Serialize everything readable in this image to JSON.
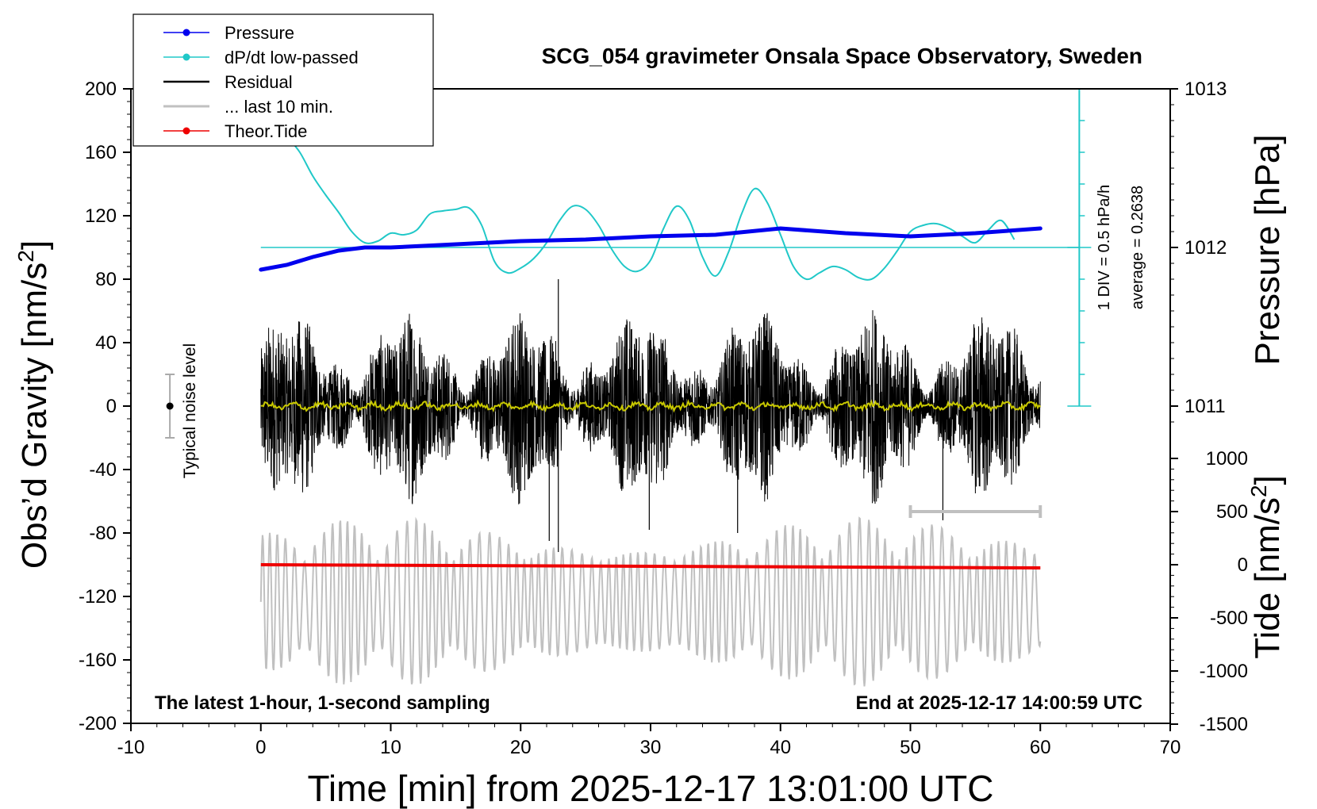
{
  "chart_data": {
    "type": "line",
    "title": "SCG_054 gravimeter Onsala Space Observatory, Sweden",
    "xlabel": "Time [min] from 2025-12-17 13:01:00 UTC",
    "ylabel_left": "Obs’d Gravity [nm/s",
    "ylabel_left_sup": "2",
    "ylabel_left_end": "]",
    "ylabel_right_pressure": "Pressure [hPa]",
    "ylabel_right_tide": "Tide [nm/s",
    "ylabel_right_tide_sup": "2",
    "ylabel_right_tide_end": "]",
    "xlim": [
      -10,
      70
    ],
    "ylim": [
      -200,
      200
    ],
    "pressure_ylim": [
      1011,
      1013
    ],
    "tide_ylim": [
      -1500,
      1000
    ],
    "x_ticks": [
      "-10",
      "0",
      "10",
      "20",
      "30",
      "40",
      "50",
      "60",
      "70"
    ],
    "y_ticks": [
      "200",
      "160",
      "120",
      "80",
      "40",
      "0",
      "-40",
      "-80",
      "-120",
      "-160",
      "-200"
    ],
    "pressure_ticks": [
      "1013",
      "1012",
      "1011"
    ],
    "tide_ticks": [
      "1000",
      "500",
      "0",
      "-500",
      "-1000",
      "-1500"
    ],
    "annotation_left": "The latest 1-hour, 1-second sampling",
    "annotation_right": "End at 2025-12-17 14:00:59 UTC",
    "noise_label": "Typical noise level",
    "noise_level": {
      "x": -7,
      "y": 0,
      "low": -20,
      "high": 20
    },
    "div_label": "1 DIV = 0.5 hPa/h",
    "average_label": "average = 0.2638",
    "colors": {
      "pressure": "#0000ee",
      "dpdt": "#20c8c8",
      "residual": "#000000",
      "last10": "#c0c0c0",
      "tide": "#ee0000",
      "residual_smooth": "#c8c800"
    },
    "legend": [
      {
        "label": "Pressure",
        "color": "#0000ee",
        "marker": true
      },
      {
        "label": "dP/dt low-passed",
        "color": "#20c8c8",
        "marker": true
      },
      {
        "label": "Residual",
        "color": "#000000",
        "marker": false
      },
      {
        "label": "... last 10 min.",
        "color": "#c0c0c0",
        "marker": false
      },
      {
        "label": "Theor.Tide",
        "color": "#ee0000",
        "marker": true
      }
    ],
    "series": [
      {
        "name": "Pressure",
        "axis": "pressure_hPa",
        "x": [
          0,
          2,
          4,
          6,
          8,
          10,
          15,
          20,
          25,
          30,
          35,
          40,
          45,
          50,
          55,
          60
        ],
        "values": [
          1011.86,
          1011.89,
          1011.94,
          1011.98,
          1012.0,
          1012.0,
          1012.02,
          1012.04,
          1012.05,
          1012.07,
          1012.08,
          1012.12,
          1012.09,
          1012.07,
          1012.09,
          1012.12
        ]
      },
      {
        "name": "dP/dt low-passed",
        "axis": "gravity_scaled",
        "x": [
          2,
          3,
          4,
          5,
          6,
          7,
          8,
          9,
          10,
          11,
          12,
          13,
          14,
          15,
          16,
          17,
          18,
          19,
          20,
          21,
          22,
          23,
          24,
          25,
          26,
          27,
          28,
          29,
          30,
          31,
          32,
          33,
          34,
          35,
          36,
          37,
          38,
          39,
          40,
          41,
          42,
          43,
          44,
          45,
          46,
          47,
          48,
          49,
          50,
          51,
          52,
          53,
          54,
          55,
          56,
          57,
          58
        ],
        "values": [
          170,
          160,
          145,
          133,
          122,
          110,
          103,
          104,
          109,
          108,
          111,
          121,
          123,
          124,
          125,
          114,
          91,
          84,
          87,
          93,
          103,
          117,
          126,
          124,
          114,
          99,
          88,
          85,
          92,
          112,
          126,
          117,
          94,
          82,
          97,
          121,
          137,
          128,
          108,
          88,
          80,
          84,
          88,
          86,
          81,
          80,
          87,
          98,
          110,
          114,
          115,
          112,
          107,
          103,
          111,
          117,
          105
        ]
      },
      {
        "name": "Residual",
        "axis": "gravity",
        "x_range": [
          0,
          60
        ],
        "envelope": [
          -70,
          70
        ],
        "spikes": [
          {
            "x": 22.9,
            "y": 80
          },
          {
            "x": 22.9,
            "y": -92
          },
          {
            "x": 22.2,
            "y": -85
          },
          {
            "x": 29.9,
            "y": -78
          },
          {
            "x": 36.7,
            "y": -80
          },
          {
            "x": 52.5,
            "y": -72
          }
        ]
      },
      {
        "name": "Theor.Tide",
        "axis": "tide",
        "x": [
          0,
          60
        ],
        "values": [
          0,
          -30
        ]
      }
    ],
    "last10_series": {
      "name": "... last 10 min.",
      "axis": "tide",
      "x_range": [
        0,
        60
      ],
      "amplitude_range": [
        -1500,
        700
      ]
    },
    "last10_bar": {
      "x_start": 50,
      "x_end": 60,
      "y": 500
    }
  }
}
